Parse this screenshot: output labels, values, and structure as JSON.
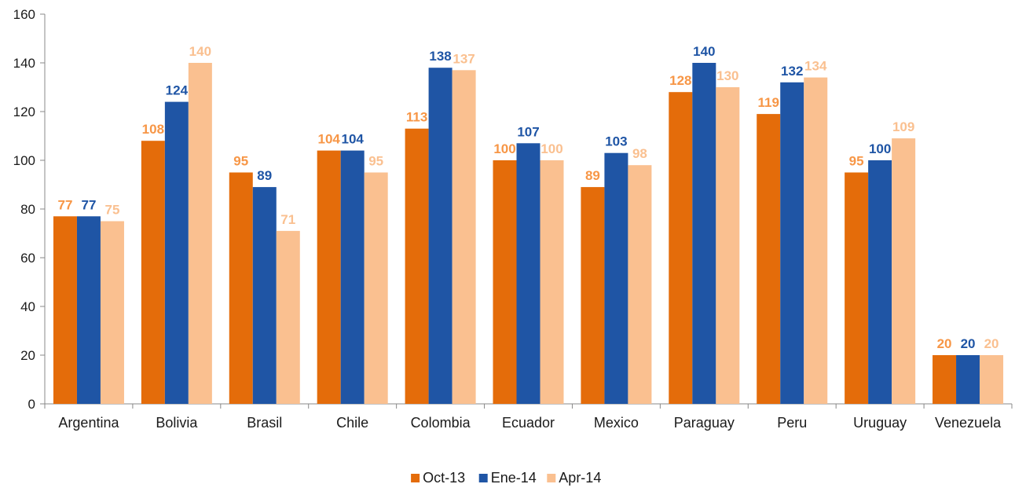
{
  "chart_data": {
    "type": "bar",
    "title": "",
    "xlabel": "",
    "ylabel": "",
    "ylim": [
      0,
      160
    ],
    "ytick_step": 20,
    "grid": false,
    "legend_position": "bottom-center",
    "categories": [
      "Argentina",
      "Bolivia",
      "Brasil",
      "Chile",
      "Colombia",
      "Ecuador",
      "Mexico",
      "Paraguay",
      "Peru",
      "Uruguay",
      "Venezuela"
    ],
    "series": [
      {
        "name": "Oct-13",
        "color": "#E46C0A",
        "label_color": "#F79646",
        "values": [
          77,
          108,
          95,
          104,
          113,
          100,
          89,
          128,
          119,
          95,
          20
        ]
      },
      {
        "name": "Ene-14",
        "color": "#1F55A5",
        "label_color": "#1F55A5",
        "values": [
          77,
          124,
          89,
          104,
          138,
          107,
          103,
          140,
          132,
          100,
          20
        ]
      },
      {
        "name": "Apr-14",
        "color": "#FAC090",
        "label_color": "#FAC090",
        "values": [
          75,
          140,
          71,
          95,
          137,
          100,
          98,
          130,
          134,
          109,
          20
        ]
      }
    ]
  }
}
